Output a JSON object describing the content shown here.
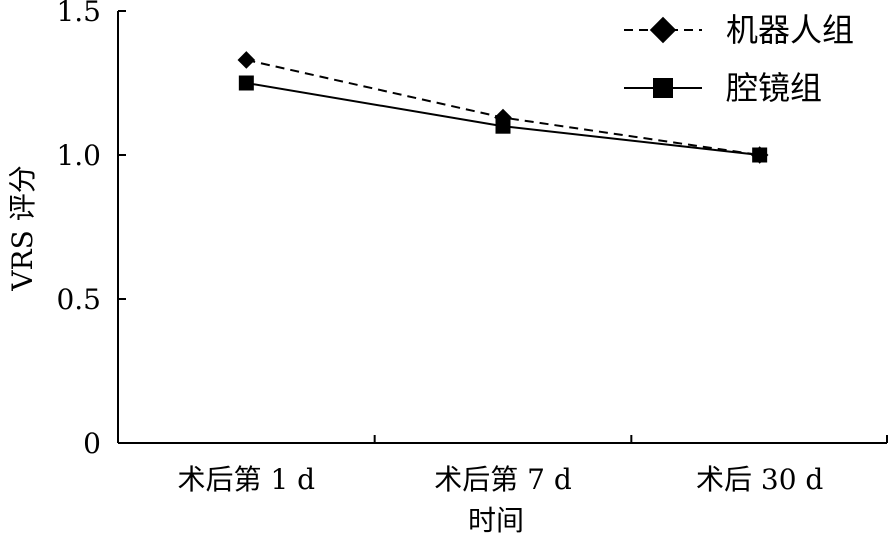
{
  "chart_data": {
    "type": "line",
    "categories": [
      "术后第 1 d",
      "术后第 7 d",
      "术后 30 d"
    ],
    "series": [
      {
        "name": "机器人组",
        "values": [
          1.33,
          1.13,
          1.0
        ],
        "line_style": "dashed",
        "marker": "diamond",
        "color": "#000000"
      },
      {
        "name": "腔镜组",
        "values": [
          1.25,
          1.1,
          1.0
        ],
        "line_style": "solid",
        "marker": "square",
        "color": "#000000"
      }
    ],
    "title": "",
    "xlabel": "时间",
    "ylabel": "VRS 评分",
    "ylim": [
      0,
      1.5
    ],
    "yticks": [
      0,
      0.5,
      1.0,
      1.5
    ],
    "ytick_labels": [
      "0",
      "0.5",
      "1.0",
      "1.5"
    ],
    "grid": false,
    "legend_position": "top-right"
  }
}
